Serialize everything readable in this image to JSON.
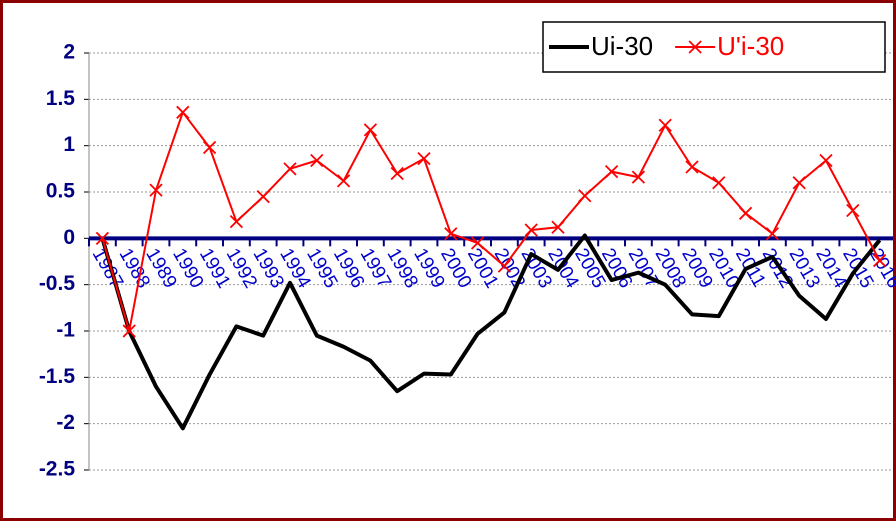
{
  "chart_data": {
    "type": "line",
    "categories": [
      "1987",
      "1988",
      "1989",
      "1990",
      "1991",
      "1992",
      "1993",
      "1994",
      "1995",
      "1996",
      "1997",
      "1998",
      "1999",
      "2000",
      "2001",
      "2002",
      "2003",
      "2004",
      "2005",
      "2006",
      "2007",
      "2008",
      "2009",
      "2010",
      "2011",
      "2012",
      "2013",
      "2014",
      "2015",
      "2016"
    ],
    "series": [
      {
        "name": "Ui-30",
        "color": "#000000",
        "marker": "none",
        "values": [
          0,
          -1.0,
          -1.6,
          -2.05,
          -1.47,
          -0.95,
          -1.05,
          -0.48,
          -1.05,
          -1.17,
          -1.32,
          -1.65,
          -1.46,
          -1.47,
          -1.03,
          -0.8,
          -0.17,
          -0.34,
          0.03,
          -0.45,
          -0.37,
          -0.5,
          -0.82,
          -0.84,
          -0.33,
          -0.2,
          -0.62,
          -0.87,
          -0.38,
          -0.02
        ]
      },
      {
        "name": "U'i-30",
        "color": "#ff0000",
        "marker": "x",
        "values": [
          0,
          -1.0,
          0.52,
          1.36,
          0.98,
          0.18,
          0.45,
          0.75,
          0.84,
          0.62,
          1.17,
          0.7,
          0.86,
          0.05,
          -0.05,
          -0.3,
          0.09,
          0.12,
          0.46,
          0.72,
          0.66,
          1.22,
          0.77,
          0.6,
          0.27,
          0.05,
          0.6,
          0.84,
          0.3,
          -0.24
        ]
      }
    ],
    "ylim": [
      -2.5,
      2
    ],
    "yticks": [
      2,
      1.5,
      1,
      0.5,
      0,
      -0.5,
      -1,
      -1.5,
      -2,
      -2.5
    ],
    "grid": true,
    "legend": "top-right",
    "category_color": "#0000cc"
  }
}
